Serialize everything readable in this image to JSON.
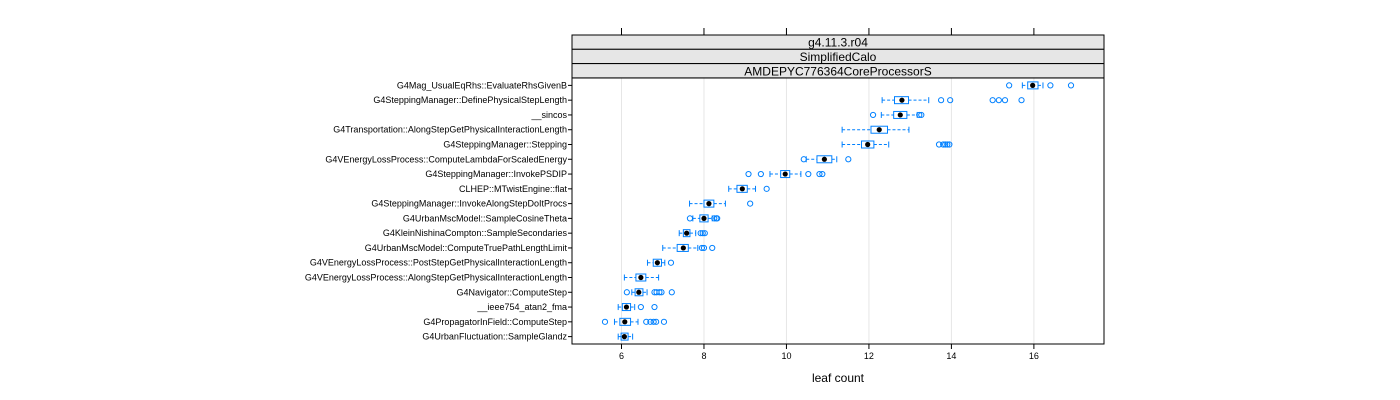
{
  "chart_data": {
    "type": "boxplot",
    "strips": [
      "g4.11.3.r04",
      "SimplifiedCalo",
      "AMDEPYC776364CoreProcessorS"
    ],
    "xlabel": "leaf count",
    "xlim": [
      4.8,
      17.7
    ],
    "xticks": [
      6,
      8,
      10,
      12,
      14,
      16
    ],
    "grid": "vertical",
    "colors": {
      "box": "#0080ff",
      "median": "#000000",
      "frame": "#000000",
      "strip": "#e6e6e6",
      "grid": "#e6e6e6"
    },
    "categories": [
      "G4Mag_UsualEqRhs::EvaluateRhsGivenB",
      "G4SteppingManager::DefinePhysicalStepLength",
      "__sincos",
      "G4Transportation::AlongStepGetPhysicalInteractionLength",
      "G4SteppingManager::Stepping",
      "G4VEnergyLossProcess::ComputeLambdaForScaledEnergy",
      "G4SteppingManager::InvokePSDIP",
      "CLHEP::MTwistEngine::flat",
      "G4SteppingManager::InvokeAlongStepDoItProcs",
      "G4UrbanMscModel::SampleCosineTheta",
      "G4KleinNishinaCompton::SampleSecondaries",
      "G4UrbanMscModel::ComputeTruePathLengthLimit",
      "G4VEnergyLossProcess::PostStepGetPhysicalInteractionLength",
      "G4VEnergyLossProcess::AlongStepGetPhysicalInteractionLength",
      "G4Navigator::ComputeStep",
      "__ieee754_atan2_fma",
      "G4PropagatorInField::ComputeStep",
      "G4UrbanFluctuation::SampleGlandz"
    ],
    "boxes": [
      {
        "wlo": 15.72,
        "q1": 15.85,
        "median": 15.97,
        "q3": 16.1,
        "whi": 16.22,
        "outliers": [
          15.4,
          16.4,
          16.9
        ]
      },
      {
        "wlo": 12.32,
        "q1": 12.62,
        "median": 12.8,
        "q3": 12.96,
        "whi": 13.45,
        "outliers": [
          13.75,
          13.97,
          15.0,
          15.15,
          15.3,
          15.7
        ]
      },
      {
        "wlo": 12.3,
        "q1": 12.6,
        "median": 12.76,
        "q3": 12.92,
        "whi": 13.17,
        "outliers": [
          12.1,
          13.22,
          13.27
        ]
      },
      {
        "wlo": 11.35,
        "q1": 12.05,
        "median": 12.25,
        "q3": 12.45,
        "whi": 12.97,
        "outliers": []
      },
      {
        "wlo": 11.35,
        "q1": 11.82,
        "median": 11.97,
        "q3": 12.12,
        "whi": 12.48,
        "outliers": [
          13.7,
          13.8,
          13.85,
          13.9,
          13.95
        ]
      },
      {
        "wlo": 10.48,
        "q1": 10.74,
        "median": 10.92,
        "q3": 11.1,
        "whi": 11.22,
        "outliers": [
          10.42,
          11.5
        ]
      },
      {
        "wlo": 9.6,
        "q1": 9.86,
        "median": 9.97,
        "q3": 10.08,
        "whi": 10.35,
        "outliers": [
          9.08,
          9.38,
          10.53,
          10.8,
          10.87
        ]
      },
      {
        "wlo": 8.6,
        "q1": 8.8,
        "median": 8.93,
        "q3": 9.05,
        "whi": 9.25,
        "outliers": [
          9.52
        ]
      },
      {
        "wlo": 7.65,
        "q1": 8.0,
        "median": 8.12,
        "q3": 8.24,
        "whi": 8.52,
        "outliers": [
          9.12
        ]
      },
      {
        "wlo": 7.73,
        "q1": 7.9,
        "median": 8.0,
        "q3": 8.1,
        "whi": 8.2,
        "outliers": [
          7.66,
          8.25,
          8.3,
          8.32
        ]
      },
      {
        "wlo": 7.4,
        "q1": 7.5,
        "median": 7.58,
        "q3": 7.66,
        "whi": 7.8,
        "outliers": [
          7.92,
          7.97,
          8.02
        ]
      },
      {
        "wlo": 7.0,
        "q1": 7.35,
        "median": 7.5,
        "q3": 7.62,
        "whi": 7.85,
        "outliers": [
          7.95,
          8.0,
          8.2
        ]
      },
      {
        "wlo": 6.63,
        "q1": 6.77,
        "median": 6.87,
        "q3": 6.97,
        "whi": 7.05,
        "outliers": [
          7.2
        ]
      },
      {
        "wlo": 6.07,
        "q1": 6.35,
        "median": 6.47,
        "q3": 6.59,
        "whi": 6.9,
        "outliers": []
      },
      {
        "wlo": 6.25,
        "q1": 6.33,
        "median": 6.42,
        "q3": 6.52,
        "whi": 6.62,
        "outliers": [
          6.13,
          6.8,
          6.85,
          6.92,
          6.97,
          7.22
        ]
      },
      {
        "wlo": 5.92,
        "q1": 6.02,
        "median": 6.12,
        "q3": 6.22,
        "whi": 6.32,
        "outliers": [
          6.47,
          6.8
        ]
      },
      {
        "wlo": 5.83,
        "q1": 5.96,
        "median": 6.08,
        "q3": 6.22,
        "whi": 6.4,
        "outliers": [
          5.6,
          6.6,
          6.7,
          6.78,
          6.84,
          7.03
        ]
      },
      {
        "wlo": 5.92,
        "q1": 5.99,
        "median": 6.07,
        "q3": 6.16,
        "whi": 6.27,
        "outliers": []
      }
    ]
  }
}
